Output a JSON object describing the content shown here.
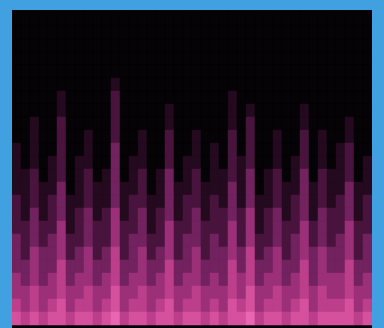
{
  "chart_data": {
    "type": "heatmap",
    "tick_labels": false,
    "value_range": [
      0,
      7
    ],
    "cells": [
      [
        0,
        0,
        0,
        0,
        0,
        0,
        0,
        0,
        0,
        0,
        0,
        0,
        0,
        0,
        0,
        0,
        0,
        0,
        0,
        0,
        0,
        0,
        0,
        0,
        0,
        0,
        0,
        0,
        0,
        0,
        0,
        0,
        0,
        0,
        0,
        0,
        0,
        0,
        0,
        0
      ],
      [
        0,
        0,
        0,
        0,
        0,
        0,
        0,
        0,
        0,
        0,
        0,
        0,
        0,
        0,
        0,
        0,
        0,
        0,
        0,
        0,
        0,
        0,
        0,
        0,
        0,
        0,
        0,
        0,
        0,
        0,
        0,
        0,
        0,
        0,
        0,
        0,
        0,
        0,
        0,
        0
      ],
      [
        0,
        0,
        0,
        0,
        0,
        0,
        0,
        0,
        0,
        0,
        0,
        0,
        0,
        0,
        0,
        0,
        0,
        0,
        0,
        0,
        0,
        0,
        0,
        0,
        0,
        0,
        0,
        0,
        0,
        0,
        0,
        0,
        0,
        0,
        0,
        0,
        0,
        0,
        0,
        0
      ],
      [
        0,
        0,
        0,
        0,
        0,
        0,
        0,
        0,
        0,
        0,
        0,
        0,
        0,
        0,
        0,
        0,
        0,
        0,
        0,
        0,
        0,
        0,
        0,
        0,
        0,
        0,
        0,
        0,
        0,
        0,
        0,
        0,
        0,
        0,
        0,
        0,
        0,
        0,
        0,
        0
      ],
      [
        0,
        0,
        0,
        0,
        0,
        0,
        0,
        0,
        0,
        0,
        0,
        0,
        0,
        0,
        0,
        0,
        0,
        0,
        0,
        0,
        0,
        0,
        0,
        0,
        0,
        0,
        0,
        0,
        0,
        0,
        0,
        0,
        0,
        0,
        0,
        0,
        0,
        0,
        0,
        0
      ],
      [
        0,
        0,
        0,
        0,
        0,
        0,
        0,
        0,
        0,
        0,
        0,
        1,
        0,
        0,
        0,
        0,
        0,
        0,
        0,
        0,
        0,
        0,
        0,
        0,
        0,
        0,
        0,
        0,
        0,
        0,
        0,
        0,
        0,
        0,
        0,
        0,
        0,
        0,
        0,
        0
      ],
      [
        0,
        0,
        0,
        0,
        0,
        1,
        0,
        0,
        0,
        0,
        0,
        2,
        0,
        0,
        0,
        0,
        0,
        0,
        0,
        0,
        0,
        0,
        0,
        0,
        1,
        0,
        0,
        0,
        0,
        0,
        0,
        0,
        0,
        0,
        0,
        0,
        0,
        0,
        0,
        0
      ],
      [
        0,
        0,
        0,
        0,
        0,
        1,
        0,
        0,
        0,
        0,
        0,
        2,
        0,
        0,
        0,
        0,
        0,
        1,
        0,
        0,
        0,
        0,
        0,
        0,
        1,
        0,
        1,
        0,
        0,
        0,
        0,
        0,
        1,
        0,
        0,
        0,
        0,
        0,
        0,
        0
      ],
      [
        0,
        0,
        1,
        0,
        0,
        2,
        0,
        0,
        0,
        0,
        0,
        2,
        0,
        0,
        0,
        0,
        0,
        1,
        0,
        0,
        0,
        0,
        0,
        0,
        1,
        0,
        2,
        0,
        0,
        0,
        0,
        0,
        1,
        0,
        0,
        0,
        0,
        1,
        0,
        0
      ],
      [
        0,
        0,
        1,
        0,
        0,
        2,
        0,
        0,
        1,
        0,
        0,
        2,
        0,
        0,
        1,
        0,
        0,
        2,
        0,
        0,
        1,
        0,
        0,
        0,
        2,
        0,
        2,
        0,
        0,
        1,
        0,
        0,
        2,
        0,
        1,
        0,
        0,
        1,
        0,
        0
      ],
      [
        1,
        0,
        1,
        0,
        0,
        2,
        0,
        0,
        1,
        0,
        0,
        3,
        0,
        0,
        1,
        0,
        0,
        2,
        0,
        0,
        1,
        0,
        1,
        0,
        2,
        0,
        2,
        0,
        0,
        1,
        0,
        0,
        2,
        0,
        1,
        0,
        1,
        2,
        0,
        0
      ],
      [
        1,
        0,
        1,
        0,
        1,
        2,
        0,
        1,
        1,
        0,
        0,
        3,
        0,
        1,
        1,
        0,
        0,
        2,
        0,
        1,
        1,
        0,
        1,
        0,
        2,
        1,
        2,
        0,
        0,
        1,
        0,
        1,
        2,
        0,
        1,
        0,
        1,
        2,
        0,
        1
      ],
      [
        1,
        1,
        2,
        0,
        1,
        2,
        0,
        1,
        2,
        0,
        1,
        3,
        0,
        1,
        2,
        0,
        1,
        3,
        0,
        1,
        2,
        0,
        1,
        1,
        2,
        1,
        3,
        0,
        1,
        2,
        0,
        1,
        3,
        0,
        2,
        1,
        1,
        2,
        0,
        1
      ],
      [
        1,
        1,
        2,
        1,
        1,
        3,
        0,
        1,
        2,
        1,
        1,
        3,
        1,
        1,
        2,
        0,
        1,
        3,
        1,
        1,
        2,
        1,
        1,
        1,
        3,
        1,
        3,
        0,
        1,
        2,
        1,
        1,
        3,
        1,
        2,
        1,
        1,
        3,
        1,
        1
      ],
      [
        2,
        1,
        2,
        1,
        2,
        3,
        1,
        1,
        2,
        1,
        1,
        3,
        1,
        2,
        2,
        1,
        1,
        3,
        1,
        2,
        2,
        1,
        2,
        1,
        3,
        1,
        3,
        1,
        1,
        2,
        1,
        2,
        3,
        1,
        2,
        1,
        2,
        3,
        1,
        2
      ],
      [
        2,
        1,
        3,
        1,
        2,
        3,
        1,
        2,
        3,
        1,
        2,
        4,
        1,
        2,
        3,
        1,
        2,
        3,
        1,
        2,
        3,
        1,
        2,
        2,
        3,
        2,
        4,
        1,
        2,
        3,
        1,
        2,
        3,
        1,
        3,
        2,
        2,
        3,
        1,
        2
      ],
      [
        2,
        2,
        3,
        2,
        2,
        4,
        1,
        2,
        3,
        2,
        2,
        4,
        2,
        2,
        3,
        1,
        2,
        4,
        2,
        2,
        3,
        2,
        2,
        2,
        4,
        2,
        4,
        1,
        2,
        3,
        2,
        2,
        4,
        2,
        3,
        2,
        2,
        4,
        2,
        2
      ],
      [
        3,
        2,
        3,
        2,
        3,
        4,
        2,
        2,
        3,
        2,
        2,
        4,
        2,
        3,
        3,
        2,
        2,
        4,
        2,
        3,
        3,
        2,
        3,
        2,
        4,
        2,
        4,
        2,
        2,
        3,
        2,
        3,
        4,
        2,
        3,
        2,
        3,
        4,
        2,
        3
      ],
      [
        3,
        2,
        4,
        3,
        3,
        4,
        2,
        3,
        4,
        2,
        3,
        5,
        2,
        3,
        4,
        2,
        3,
        4,
        2,
        3,
        4,
        2,
        3,
        3,
        4,
        3,
        5,
        2,
        3,
        4,
        2,
        3,
        4,
        3,
        4,
        3,
        3,
        4,
        2,
        3
      ],
      [
        3,
        3,
        4,
        3,
        3,
        5,
        3,
        3,
        4,
        3,
        3,
        5,
        3,
        3,
        4,
        3,
        3,
        5,
        3,
        3,
        4,
        3,
        3,
        3,
        5,
        3,
        5,
        3,
        3,
        4,
        3,
        3,
        5,
        3,
        4,
        3,
        3,
        5,
        3,
        3
      ],
      [
        4,
        3,
        4,
        3,
        4,
        5,
        3,
        4,
        4,
        3,
        4,
        5,
        3,
        4,
        4,
        3,
        4,
        5,
        3,
        4,
        4,
        3,
        4,
        3,
        5,
        4,
        5,
        3,
        4,
        4,
        3,
        4,
        5,
        3,
        4,
        4,
        4,
        5,
        3,
        4
      ],
      [
        4,
        4,
        5,
        4,
        4,
        5,
        4,
        4,
        5,
        4,
        4,
        6,
        4,
        4,
        5,
        4,
        4,
        5,
        4,
        4,
        5,
        4,
        4,
        4,
        5,
        4,
        6,
        4,
        4,
        5,
        4,
        4,
        5,
        4,
        5,
        4,
        4,
        5,
        4,
        4
      ],
      [
        5,
        4,
        5,
        4,
        5,
        6,
        4,
        5,
        5,
        4,
        5,
        6,
        4,
        5,
        5,
        4,
        5,
        6,
        4,
        5,
        5,
        4,
        5,
        4,
        6,
        5,
        6,
        4,
        5,
        5,
        4,
        5,
        6,
        4,
        5,
        5,
        5,
        6,
        4,
        5
      ],
      [
        6,
        5,
        6,
        5,
        6,
        6,
        5,
        6,
        6,
        5,
        6,
        7,
        5,
        6,
        6,
        5,
        6,
        6,
        5,
        6,
        6,
        5,
        6,
        5,
        6,
        6,
        7,
        5,
        6,
        6,
        5,
        6,
        6,
        5,
        6,
        6,
        6,
        6,
        5,
        6
      ]
    ]
  }
}
